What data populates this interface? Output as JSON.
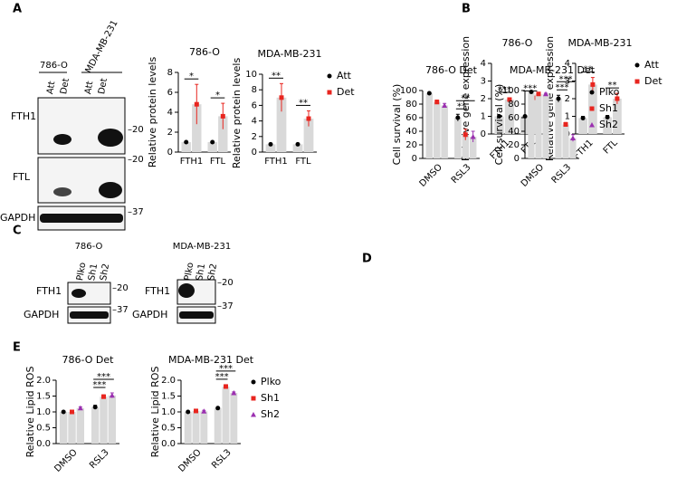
{
  "panel_labels": [
    "A",
    "B",
    "C",
    "D",
    "E"
  ],
  "blots": {
    "a": {
      "lines": [
        "786-O",
        "MDA-MB-231"
      ],
      "lanes": [
        "Att",
        "Det",
        "Att",
        "Det"
      ],
      "rows": [
        "FTH1",
        "FTL",
        "GAPDH"
      ],
      "markers": [
        "20",
        "20",
        "37"
      ]
    },
    "c1": {
      "line": "786-O",
      "lanes": [
        "Plko",
        "Sh1",
        "Sh2"
      ],
      "rows": [
        "FTH1",
        "GAPDH"
      ],
      "markers": [
        "20",
        "37"
      ]
    },
    "c2": {
      "line": "MDA-MB-231",
      "lanes": [
        "Plko",
        "Sh1",
        "Sh2"
      ],
      "rows": [
        "FTH1",
        "GAPDH"
      ],
      "markers": [
        "20",
        "37"
      ]
    }
  },
  "chart_data": [
    {
      "type": "bar",
      "title": "786-O",
      "y_label": "Relative protein levels",
      "categories": [
        "FTH1",
        "FTL"
      ],
      "series": [
        {
          "name": "Att",
          "color": "#000000",
          "values": [
            1,
            1
          ],
          "errors": [
            0,
            0
          ]
        },
        {
          "name": "Det",
          "color": "#e8251f",
          "values": [
            4.8,
            3.6
          ],
          "errors": [
            2,
            1.3
          ]
        }
      ],
      "ylim": [
        0,
        8
      ],
      "yticks": [
        0,
        2,
        4,
        6,
        8
      ],
      "significance": [
        "*",
        "*"
      ]
    },
    {
      "type": "bar",
      "title": "MDA-MB-231",
      "y_label": "Relative protein levels",
      "categories": [
        "FTH1",
        "FTL"
      ],
      "series": [
        {
          "name": "Att",
          "color": "#000000",
          "values": [
            1,
            1
          ],
          "errors": [
            0,
            0
          ]
        },
        {
          "name": "Det",
          "color": "#e8251f",
          "values": [
            7,
            4.3
          ],
          "errors": [
            1.8,
            1
          ]
        }
      ],
      "ylim": [
        0,
        10
      ],
      "yticks": [
        0,
        2,
        4,
        6,
        8,
        10
      ],
      "significance": [
        "**",
        "**"
      ],
      "legend": "right"
    },
    {
      "type": "bar",
      "title": "786-O",
      "y_label": "Relative gene expression",
      "categories": [
        "FTH1",
        "FTL"
      ],
      "series": [
        {
          "name": "Att",
          "color": "#000000",
          "values": [
            1,
            1
          ],
          "errors": [
            0.05,
            0.05
          ]
        },
        {
          "name": "Det",
          "color": "#e8251f",
          "values": [
            1.95,
            2.05
          ],
          "errors": [
            0.1,
            0.08
          ]
        }
      ],
      "ylim": [
        0,
        4
      ],
      "yticks": [
        0,
        1,
        2,
        3,
        4
      ],
      "significance": [
        "***",
        "***"
      ]
    },
    {
      "type": "bar",
      "title": "MDA-MB-231",
      "y_label": "Relative gene expression",
      "categories": [
        "FTH1",
        "FTL"
      ],
      "series": [
        {
          "name": "Att",
          "color": "#000000",
          "values": [
            0.9,
            0.95
          ],
          "errors": [
            0.1,
            0.1
          ]
        },
        {
          "name": "Det",
          "color": "#e8251f",
          "values": [
            2.8,
            2
          ],
          "errors": [
            0.4,
            0.3
          ]
        }
      ],
      "ylim": [
        0,
        4
      ],
      "yticks": [
        0,
        1,
        2,
        3,
        4
      ],
      "significance": [
        "**",
        "**"
      ],
      "legend": "right"
    },
    {
      "type": "bar",
      "title": "786-O Det",
      "y_label": "Cell survival (%)",
      "categories": [
        "DMSO",
        "RSL3"
      ],
      "series": [
        {
          "name": "Plko",
          "color": "#000000",
          "values": [
            96,
            60
          ],
          "errors": [
            1,
            5
          ]
        },
        {
          "name": "Sh1",
          "color": "#e8251f",
          "values": [
            83,
            35
          ],
          "errors": [
            3,
            8
          ]
        },
        {
          "name": "Sh2",
          "color": "#9b30b0",
          "values": [
            78,
            32
          ],
          "errors": [
            3,
            8
          ]
        }
      ],
      "ylim": [
        0,
        100
      ],
      "yticks": [
        0,
        20,
        40,
        60,
        80,
        100
      ],
      "significance": [
        "**",
        "**"
      ]
    },
    {
      "type": "bar",
      "title": "MDA-MB-231 Det",
      "y_label": "Cell survival (%)",
      "categories": [
        "DMSO",
        "RSL3"
      ],
      "series": [
        {
          "name": "Plko",
          "color": "#000000",
          "values": [
            98,
            88
          ],
          "errors": [
            1,
            5
          ]
        },
        {
          "name": "Sh1",
          "color": "#e8251f",
          "values": [
            95,
            50
          ],
          "errors": [
            1,
            3
          ]
        },
        {
          "name": "Sh2",
          "color": "#9b30b0",
          "values": [
            95,
            30
          ],
          "errors": [
            1,
            5
          ]
        }
      ],
      "ylim": [
        0,
        100
      ],
      "yticks": [
        0,
        20,
        40,
        60,
        80,
        100
      ],
      "significance": [
        "***",
        "***"
      ],
      "legend": "right"
    },
    {
      "type": "bar",
      "title": "786-O Det",
      "y_label": "Relative Lipid ROS",
      "categories": [
        "DMSO",
        "RSL3"
      ],
      "series": [
        {
          "name": "Plko",
          "color": "#000000",
          "values": [
            1,
            1.15
          ],
          "errors": [
            0.03,
            0.06
          ]
        },
        {
          "name": "Sh1",
          "color": "#e8251f",
          "values": [
            1,
            1.48
          ],
          "errors": [
            0.03,
            0.06
          ]
        },
        {
          "name": "Sh2",
          "color": "#9b30b0",
          "values": [
            1.12,
            1.52
          ],
          "errors": [
            0.04,
            0.08
          ]
        }
      ],
      "ylim": [
        0,
        2
      ],
      "yticks": [
        {
          "value": 0,
          "label": "0.0"
        },
        {
          "value": 0.5,
          "label": "0.5"
        },
        {
          "value": 1,
          "label": "1.0"
        },
        {
          "value": 1.5,
          "label": "1.5"
        },
        {
          "value": 2,
          "label": "2.0"
        }
      ],
      "significance": [
        "***",
        "***"
      ]
    },
    {
      "type": "bar",
      "title": "MDA-MB-231 Det",
      "y_label": "Relative Lipid ROS",
      "categories": [
        "DMSO",
        "RSL3"
      ],
      "series": [
        {
          "name": "Plko",
          "color": "#000000",
          "values": [
            1,
            1.12
          ],
          "errors": [
            0.02,
            0.03
          ]
        },
        {
          "name": "Sh1",
          "color": "#e8251f",
          "values": [
            1.03,
            1.8
          ],
          "errors": [
            0.03,
            0.06
          ]
        },
        {
          "name": "Sh2",
          "color": "#9b30b0",
          "values": [
            1.02,
            1.6
          ],
          "errors": [
            0.03,
            0.03
          ]
        }
      ],
      "ylim": [
        0,
        2
      ],
      "yticks": [
        {
          "value": 0,
          "label": "0.0"
        },
        {
          "value": 0.5,
          "label": "0.5"
        },
        {
          "value": 1,
          "label": "1.0"
        },
        {
          "value": 1.5,
          "label": "1.5"
        },
        {
          "value": 2,
          "label": "2.0"
        }
      ],
      "significance": [
        "***",
        "***"
      ],
      "legend": "right"
    }
  ]
}
